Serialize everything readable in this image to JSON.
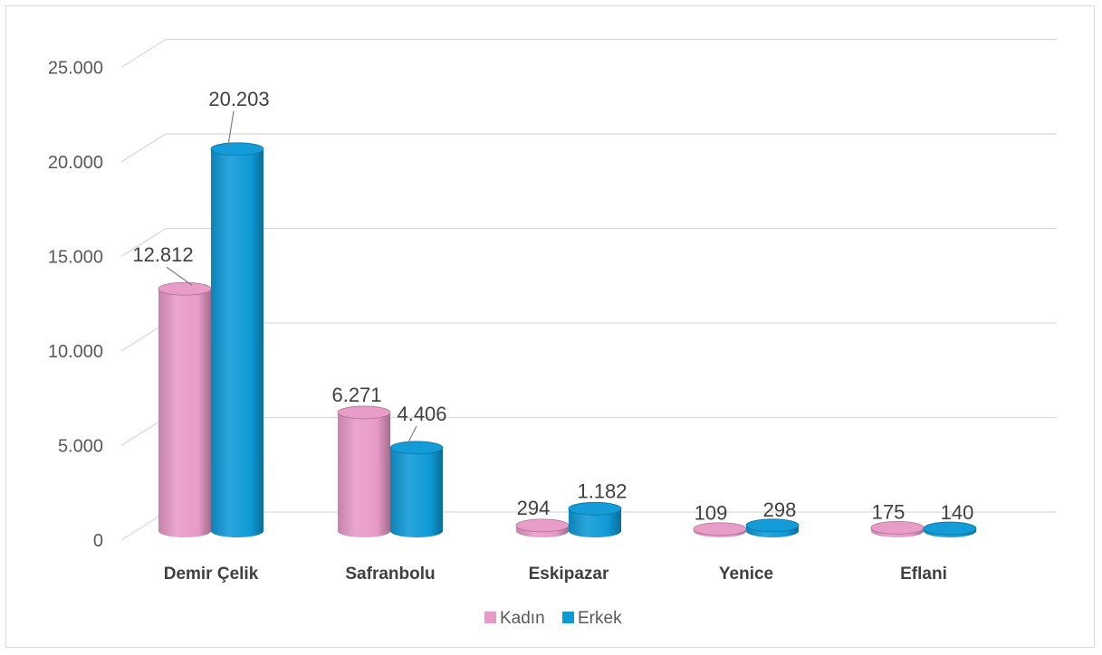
{
  "chart_data": {
    "type": "bar",
    "style": "3d-cylinder",
    "title": "",
    "xlabel": "",
    "ylabel": "",
    "categories": [
      "Demir Çelik",
      "Safranbolu",
      "Eskipazar",
      "Yenice",
      "Eflani"
    ],
    "series": [
      {
        "name": "Kadın",
        "values": [
          12812,
          6271,
          294,
          109,
          175
        ],
        "labels": [
          "12.812",
          "6.271",
          "294",
          "109",
          "175"
        ],
        "color": "#e89ac7"
      },
      {
        "name": "Erkek",
        "values": [
          20203,
          4406,
          1182,
          298,
          140
        ],
        "labels": [
          "20.203",
          "4.406",
          "1.182",
          "298",
          "140"
        ],
        "color": "#0e9ad7"
      }
    ],
    "ylim": [
      0,
      25000
    ],
    "yticks": [
      0,
      5000,
      10000,
      15000,
      20000,
      25000
    ],
    "ytick_labels": [
      "0",
      "5.000",
      "10.000",
      "15.000",
      "20.000",
      "25.000"
    ],
    "grid": true,
    "legend_position": "bottom"
  }
}
